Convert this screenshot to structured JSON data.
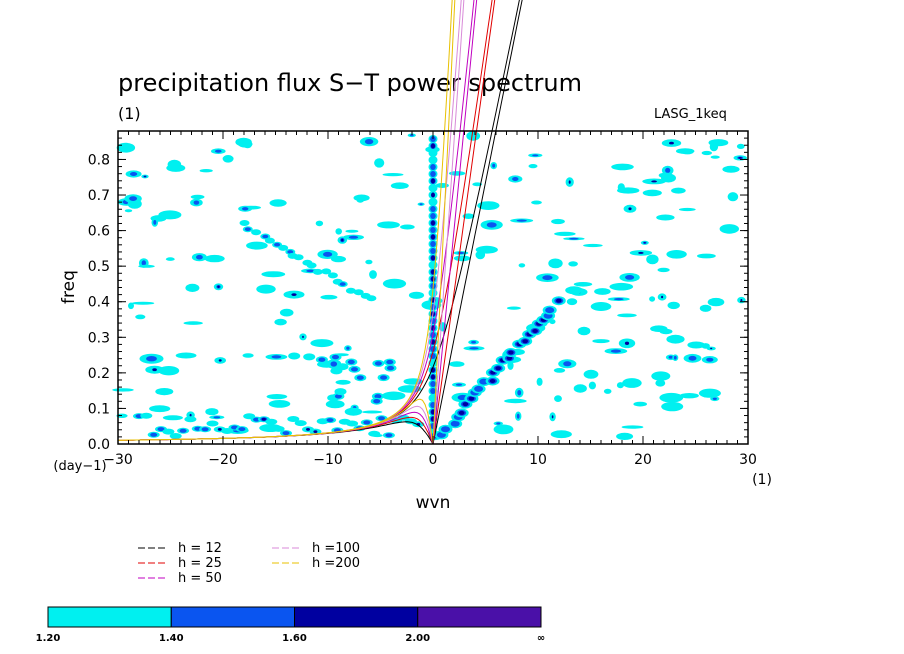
{
  "chart_data": {
    "type": "contour",
    "title": "precipitation flux S−T power spectrum",
    "units": "(1)",
    "model": "LASG_1keq",
    "xlabel": "wvn",
    "x_units": "(1)",
    "ylabel": "freq",
    "y_units": "(day−1)",
    "xlim": [
      -30,
      30
    ],
    "ylim": [
      0,
      0.88
    ],
    "xticks": [
      -30,
      -20,
      -10,
      0,
      10,
      20,
      30
    ],
    "yticks": [
      0.0,
      0.1,
      0.2,
      0.3,
      0.4,
      0.5,
      0.6,
      0.7,
      0.8
    ],
    "dispersion_curves": [
      {
        "label": "h = 12",
        "h": 12,
        "color": "#000000"
      },
      {
        "label": "h = 25",
        "h": 25,
        "color": "#e00000"
      },
      {
        "label": "h = 50",
        "h": 50,
        "color": "#c000c0"
      },
      {
        "label": "h =100",
        "h": 100,
        "color": "#d88ad8"
      },
      {
        "label": "h =200",
        "h": 200,
        "color": "#e8c000"
      }
    ],
    "colorbar": {
      "levels": [
        "1.20",
        "1.40",
        "1.60",
        "2.00",
        "∞"
      ],
      "colors": [
        "#00f0f0",
        "#0a55f0",
        "#0000a0",
        "#4a10a8"
      ]
    }
  }
}
